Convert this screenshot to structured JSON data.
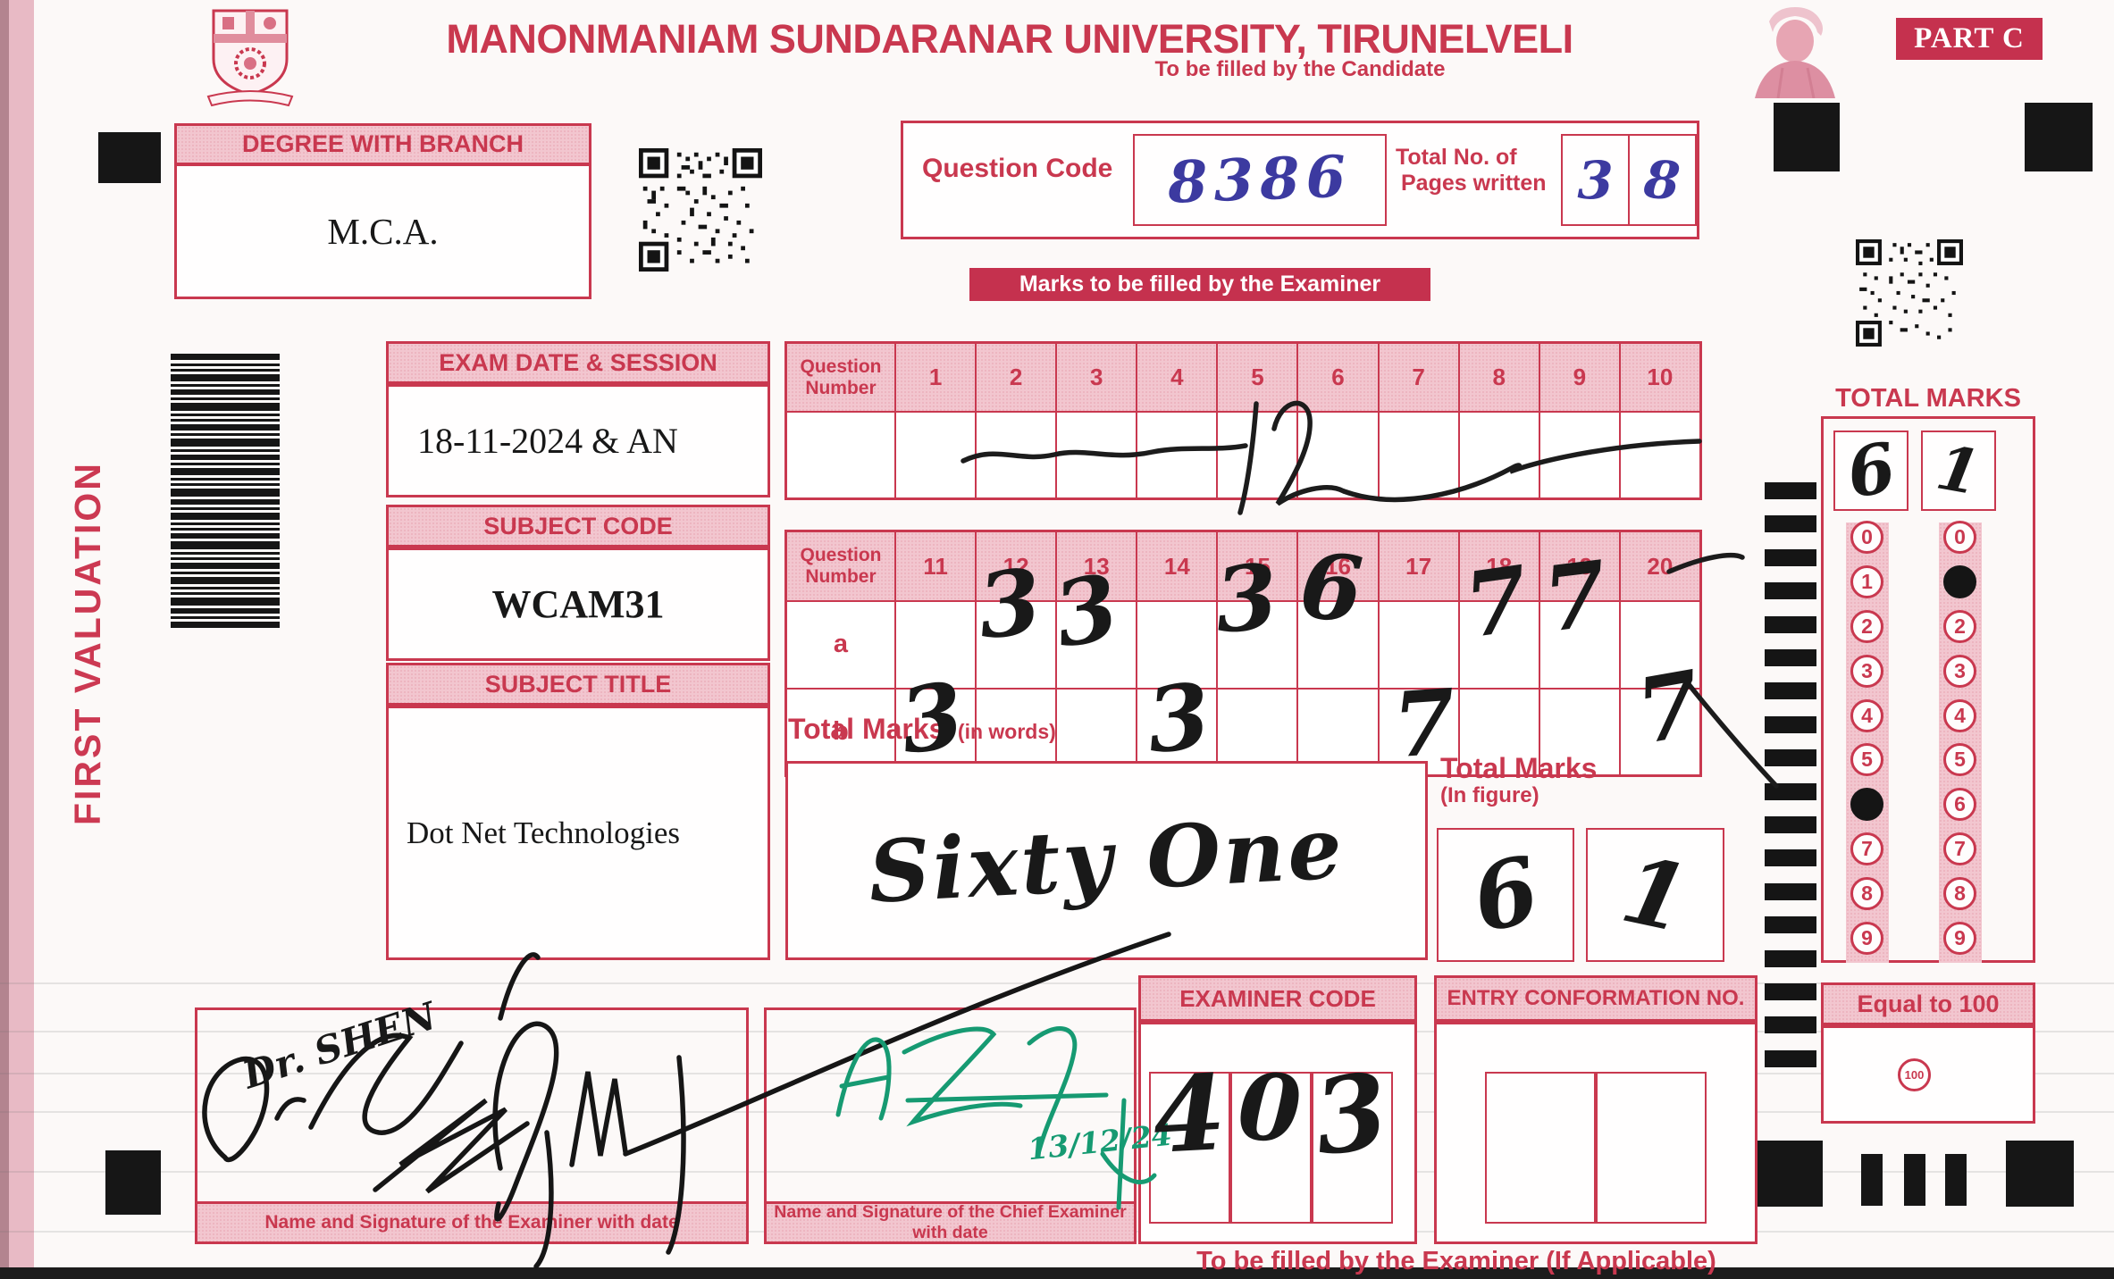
{
  "header": {
    "university": "MANONMANIAM SUNDARANAR UNIVERSITY, TIRUNELVELI",
    "part_label": "PART C",
    "candidate_note": "To be filled by the Candidate",
    "examiner_banner": "Marks to be filled by the Examiner",
    "side_label": "FIRST VALUATION"
  },
  "candidate": {
    "degree_label": "DEGREE WITH BRANCH",
    "degree_value": "M.C.A.",
    "question_code_label": "Question Code",
    "question_code_value": "8386",
    "pages_label_line1": "Total No. of",
    "pages_label_line2": "Pages written",
    "pages_digits": [
      "3",
      "8"
    ]
  },
  "exam_info": {
    "date_label": "EXAM DATE & SESSION",
    "date_value": "18-11-2024 & AN",
    "subject_code_label": "SUBJECT CODE",
    "subject_code_value": "WCAM31",
    "subject_title_label": "SUBJECT TITLE",
    "subject_title_value": "Dot Net Technologies"
  },
  "marks": {
    "row_header_line1": "Question",
    "row_header_line2": "Number",
    "table1_columns": [
      "1",
      "2",
      "3",
      "4",
      "5",
      "6",
      "7",
      "8",
      "9",
      "10"
    ],
    "table1_strike_note": "12",
    "table2_columns": [
      "11",
      "12",
      "13",
      "14",
      "15",
      "16",
      "17",
      "18",
      "19",
      "20"
    ],
    "row_a_label": "a",
    "row_b_label": "b",
    "row_a_marks": {
      "12": "3",
      "13": "3",
      "15": "3",
      "16": "6",
      "18": "7",
      "19": "7"
    },
    "row_b_marks": {
      "11": "3",
      "14": "3",
      "17": "7",
      "20": "7"
    }
  },
  "totals": {
    "words_label": "Total Marks",
    "words_sublabel": "(in words)",
    "words_value": "Sixty One",
    "figure_label": "Total Marks",
    "figure_sublabel": "(In figure)",
    "figure_digits": [
      "6",
      "1"
    ],
    "panel_label": "TOTAL MARKS",
    "panel_digits": [
      "6",
      "1"
    ],
    "bubble_digits": [
      "0",
      "1",
      "2",
      "3",
      "4",
      "5",
      "6",
      "7",
      "8",
      "9"
    ],
    "filled_left": "6",
    "filled_right": "1",
    "equal_label": "Equal to 100",
    "equal_bubble": "100"
  },
  "footer": {
    "examiner_code_label": "EXAMINER CODE",
    "examiner_code_value": "403",
    "entry_conf_label": "ENTRY CONFORMATION NO.",
    "entry_conf_value": "",
    "examiner_note": "To be filled by the Examiner (If Applicable)",
    "sig_examiner_label": "Name and Signature of the Examiner with date",
    "sig_examiner_name": "Dr. SHEN",
    "sig_chief_label": "Name and Signature of the Chief Examiner with date",
    "sig_chief_date": "13/12/24"
  },
  "colors": {
    "red": "#c9384f",
    "pink": "#f2c6cf",
    "banner": "#c5314e",
    "ink_blue": "#3c3aa0",
    "ink_black": "#191919",
    "ink_green": "#169a72"
  }
}
